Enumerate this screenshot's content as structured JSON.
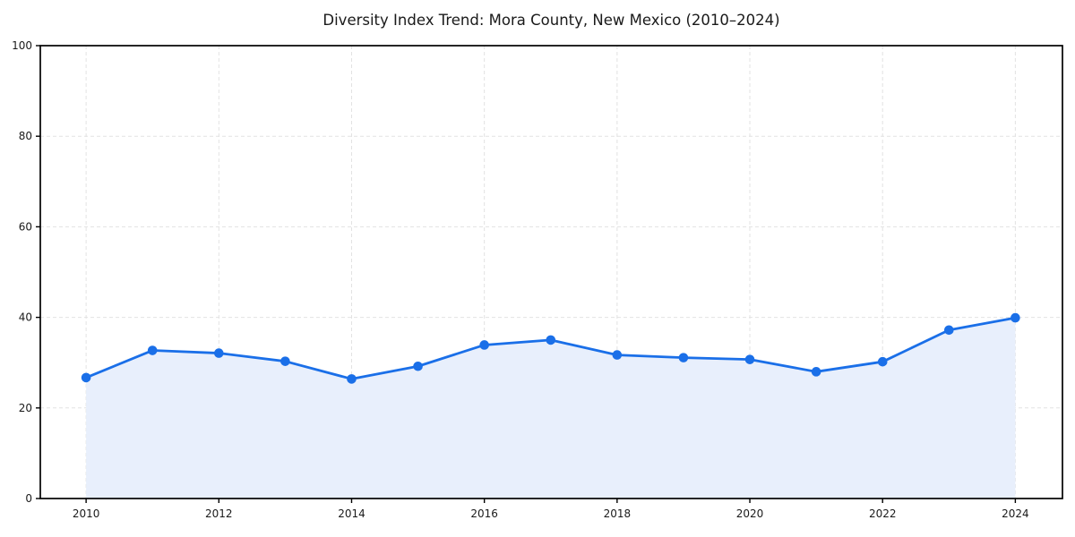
{
  "title": "Diversity Index Trend: Mora County, New Mexico (2010–2024)",
  "chart_data": {
    "type": "area",
    "title": "Diversity Index Trend: Mora County, New Mexico (2010–2024)",
    "xlabel": "",
    "ylabel": "",
    "series_name": "Diversity Index",
    "x": [
      2010,
      2011,
      2012,
      2013,
      2014,
      2015,
      2016,
      2017,
      2018,
      2019,
      2020,
      2021,
      2022,
      2023,
      2024
    ],
    "values": [
      26.7,
      32.7,
      32.1,
      30.3,
      26.4,
      29.2,
      33.9,
      35.0,
      31.7,
      31.1,
      30.7,
      28.0,
      30.2,
      37.2,
      39.9
    ],
    "xlim": [
      2009.31,
      2024.71
    ],
    "ylim": [
      0,
      100
    ],
    "xticks": [
      2010,
      2012,
      2014,
      2016,
      2018,
      2020,
      2022,
      2024
    ],
    "yticks": [
      0,
      20,
      40,
      60,
      80,
      100
    ],
    "grid": true,
    "grid_style": "dashed",
    "legend": "none",
    "line_color": "#1a6fe8",
    "marker_color": "#1a6fe8",
    "fill_color": "#e8effc",
    "grid_color": "#e2e2e2",
    "frame_color": "#000000",
    "text_color": "#1a1a1a"
  }
}
